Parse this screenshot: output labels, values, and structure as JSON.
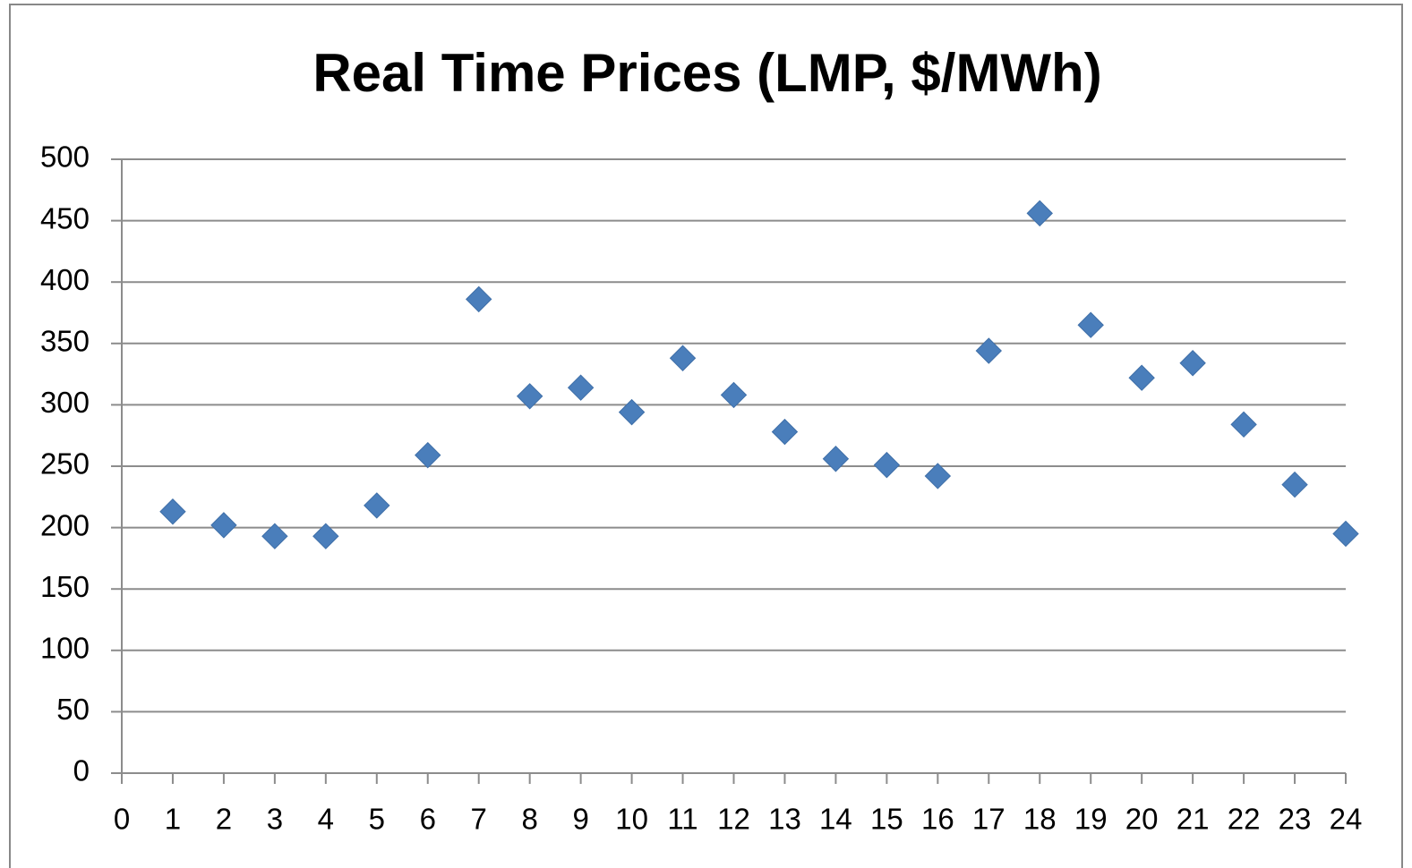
{
  "chart_data": {
    "type": "scatter",
    "title": "Real Time Prices (LMP, $/MWh)",
    "x": [
      1,
      2,
      3,
      4,
      5,
      6,
      7,
      8,
      9,
      10,
      11,
      12,
      13,
      14,
      15,
      16,
      17,
      18,
      19,
      20,
      21,
      22,
      23,
      24
    ],
    "values": [
      213,
      202,
      193,
      193,
      218,
      259,
      386,
      307,
      314,
      294,
      338,
      308,
      278,
      256,
      251,
      242,
      344,
      456,
      365,
      322,
      334,
      284,
      235,
      195
    ],
    "color": "#4a7ebb",
    "xlim": [
      0,
      24
    ],
    "xticks": [
      0,
      1,
      2,
      3,
      4,
      5,
      6,
      7,
      8,
      9,
      10,
      11,
      12,
      13,
      14,
      15,
      16,
      17,
      18,
      19,
      20,
      21,
      22,
      23,
      24
    ],
    "ylim": [
      0,
      500
    ],
    "yticks": [
      0,
      50,
      100,
      150,
      200,
      250,
      300,
      350,
      400,
      450,
      500
    ],
    "grid": true
  }
}
